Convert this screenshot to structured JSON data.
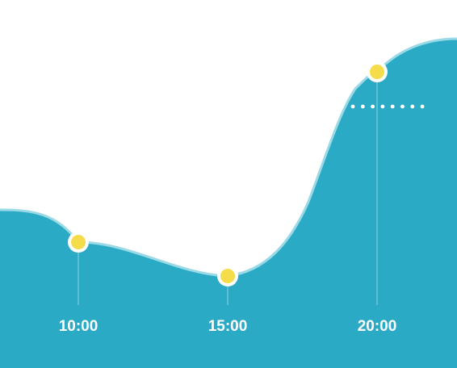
{
  "chart_data": {
    "type": "area",
    "x_ticks": [
      "10:00",
      "15:00",
      "20:00"
    ],
    "series": [
      {
        "points": [
          {
            "x": "10:00",
            "y": 0.58
          },
          {
            "x": "15:00",
            "y": 0.16
          },
          {
            "x": "20:00",
            "y": 2.69
          }
        ]
      }
    ],
    "reference_line": {
      "style": "dotted",
      "y": 2.26
    },
    "grid": false,
    "legend": "none",
    "colors": {
      "fill": "#2aaac5",
      "outline": "#9ad9e6",
      "marker_fill": "#f5dc4a",
      "marker_ring": "#ffffff",
      "labels": "#ffffff"
    }
  }
}
